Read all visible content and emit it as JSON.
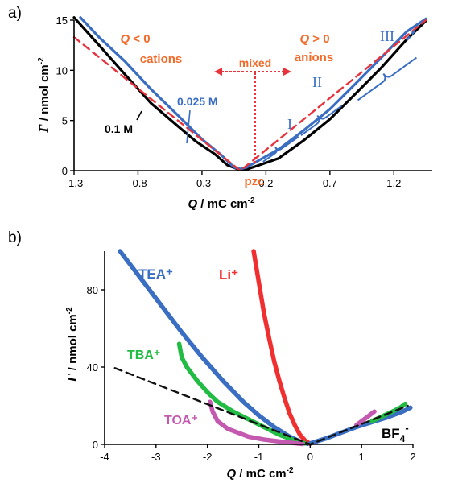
{
  "chart_data": [
    {
      "panel": "a)",
      "type": "line",
      "xlabel_var": "Q",
      "xlabel_unit": " / mC cm",
      "xlabel_sup": "-2",
      "ylabel_var": "Γ",
      "ylabel_unit": " / nmol cm",
      "ylabel_sup": "-2",
      "xlim": [
        -1.3,
        1.5
      ],
      "ylim": [
        0,
        15
      ],
      "xticks": [
        "-1.3",
        "-0.8",
        "-0.3",
        "0.2",
        "0.7",
        "1.2"
      ],
      "yticks": [
        "0",
        "5",
        "10",
        "15"
      ],
      "colors": {
        "c01": "#000000",
        "c0025": "#3a6ec2",
        "dash": "#e8323c",
        "orange": "#f26a2a",
        "blue": "#3a6ec2"
      },
      "series": [
        {
          "name": "0.1 M",
          "color": "#000000",
          "x": [
            -1.3,
            -1.1,
            -0.9,
            -0.7,
            -0.5,
            -0.35,
            -0.2,
            -0.1,
            -0.02,
            0.05,
            0.15,
            0.3,
            0.5,
            0.7,
            0.9,
            1.1,
            1.3,
            1.45
          ],
          "y": [
            15.2,
            12.5,
            9.5,
            6.8,
            4.5,
            3.0,
            1.6,
            0.6,
            0.1,
            0.2,
            0.5,
            1.3,
            3.0,
            5.2,
            7.6,
            10.3,
            13.0,
            15.0
          ]
        },
        {
          "name": "0.025 M",
          "color": "#3a6ec2",
          "x": [
            -1.25,
            -1.1,
            -0.9,
            -0.7,
            -0.5,
            -0.3,
            -0.15,
            -0.05,
            0.0,
            0.05,
            0.15,
            0.3,
            0.5,
            0.7,
            0.9,
            1.1,
            1.3,
            1.45
          ],
          "y": [
            15.2,
            13.3,
            10.8,
            8.2,
            5.6,
            3.2,
            1.5,
            0.4,
            0.1,
            0.4,
            1.0,
            2.2,
            4.0,
            6.2,
            8.6,
            11.3,
            13.8,
            15.2
          ]
        },
        {
          "name": "fit",
          "color": "#e8323c",
          "dashed": true,
          "x": [
            -1.3,
            0.0,
            1.45
          ],
          "y": [
            13.3,
            0.0,
            15.0
          ]
        }
      ],
      "blue_dash_line": {
        "x": [
          1.3,
          1.38
        ],
        "y": [
          13.0,
          14.2
        ]
      },
      "annotations": {
        "q_neg": "Q < 0",
        "cations": "cations",
        "q_pos": "Q > 0",
        "anions": "anions",
        "mixed": "mixed",
        "pzc": "pzc",
        "conc_low": "0.025 M",
        "conc_high": "0.1 M",
        "region_1": "I",
        "region_2": "II",
        "region_3": "III"
      }
    },
    {
      "panel": "b)",
      "type": "scatter",
      "xlabel_var": "Q",
      "xlabel_unit": "  / mC cm",
      "xlabel_sup": "-2",
      "ylabel_var": "Γ",
      "ylabel_unit": " / nmol cm",
      "ylabel_sup": "-2",
      "xlim": [
        -4,
        2
      ],
      "ylim": [
        0,
        100
      ],
      "xticks": [
        "-4",
        "-3",
        "-2",
        "-1",
        "0",
        "1",
        "2"
      ],
      "yticks": [
        "0",
        "40",
        "80"
      ],
      "series": [
        {
          "name": "TEA⁺",
          "color": "#3a6ec2",
          "x": [
            -3.7,
            -3.3,
            -2.9,
            -2.5,
            -2.1,
            -1.7,
            -1.3,
            -1.0,
            -0.7,
            -0.4,
            -0.2,
            -0.05
          ],
          "y": [
            100,
            86,
            72,
            58,
            45,
            33,
            22,
            15,
            9,
            4,
            1.5,
            0.3
          ]
        },
        {
          "name": "Li⁺",
          "color": "#f03030",
          "x": [
            -1.1,
            -1.0,
            -0.9,
            -0.8,
            -0.7,
            -0.6,
            -0.5,
            -0.4,
            -0.3,
            -0.2,
            -0.1,
            0.0
          ],
          "y": [
            100,
            84,
            68,
            55,
            43,
            33,
            24,
            16,
            10,
            5,
            2,
            0.3
          ]
        },
        {
          "name": "TBA⁺",
          "color": "#22bb44",
          "x": [
            -2.55,
            -2.5,
            -2.4,
            -2.2,
            -2.0,
            -1.8,
            -1.5,
            -1.2,
            -0.9,
            -0.6,
            -0.3,
            -0.1
          ],
          "y": [
            52,
            45,
            40,
            33,
            27,
            22,
            17,
            13,
            9,
            5,
            2,
            0.5
          ]
        },
        {
          "name": "TOA⁺",
          "color": "#c45ab0",
          "x": [
            -1.95,
            -1.9,
            -1.8,
            -1.6,
            -1.4,
            -1.2,
            -0.9,
            -0.6,
            -0.35,
            -0.15
          ],
          "y": [
            22,
            17,
            12,
            8,
            6,
            4,
            2.5,
            1.5,
            0.8,
            0.2
          ]
        },
        {
          "name": "BF₄⁻",
          "color": "#3a6ec2",
          "x": [
            0.0,
            0.3,
            0.6,
            0.9,
            1.2,
            1.5,
            1.8,
            1.95
          ],
          "y": [
            0.5,
            3,
            6,
            9,
            11.5,
            14,
            17,
            19
          ]
        },
        {
          "name": "green-pos",
          "color": "#22bb44",
          "x": [
            1.2,
            1.4,
            1.6,
            1.75,
            1.85
          ],
          "y": [
            12,
            14.5,
            17,
            19,
            21
          ]
        },
        {
          "name": "purple-pos",
          "color": "#c45ab0",
          "x": [
            0.9,
            1.0,
            1.1,
            1.2,
            1.25
          ],
          "y": [
            10,
            12,
            14,
            16,
            17
          ]
        },
        {
          "name": "fit",
          "color": "#111111",
          "dashed": true,
          "x": [
            -3.8,
            0.0,
            1.9
          ],
          "y": [
            39.5,
            0.0,
            20.0
          ]
        }
      ],
      "labels": {
        "tea": "TEA⁺",
        "li": "Li⁺",
        "tba": "TBA⁺",
        "toa": "TOA⁺",
        "bf4_main": "BF",
        "bf4_sub": "4",
        "bf4_sup": "-"
      }
    }
  ]
}
